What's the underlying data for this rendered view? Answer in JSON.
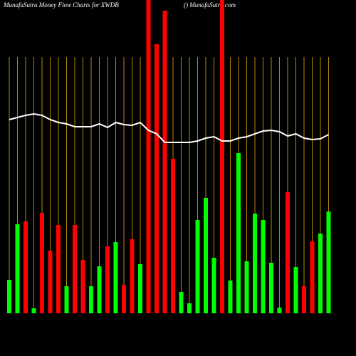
{
  "chart_data": {
    "type": "bar",
    "title": "MunafaSutra  Money Flow  Charts for XWDB",
    "subtitle": "() MunafaSutra.com",
    "values": [
      47,
      125,
      129,
      7,
      141,
      88,
      124,
      38,
      124,
      75,
      38,
      66,
      94,
      100,
      40,
      104,
      69,
      440,
      378,
      425,
      217,
      30,
      14,
      131,
      162,
      78,
      440,
      46,
      225,
      73,
      140,
      131,
      71,
      8,
      170,
      65,
      38,
      101,
      112,
      143
    ],
    "colors": [
      "#00ff00",
      "#00ff00",
      "#ff0000",
      "#00ff00",
      "#ff0000",
      "#ff0000",
      "#ff0000",
      "#00ff00",
      "#ff0000",
      "#ff0000",
      "#00ff00",
      "#00ff00",
      "#ff0000",
      "#00ff00",
      "#ff0000",
      "#ff0000",
      "#00ff00",
      "#ff0000",
      "#ff0000",
      "#ff0000",
      "#ff0000",
      "#00ff00",
      "#00ff00",
      "#00ff00",
      "#00ff00",
      "#00ff00",
      "#ff0000",
      "#00ff00",
      "#00ff00",
      "#00ff00",
      "#00ff00",
      "#00ff00",
      "#00ff00",
      "#00ff00",
      "#ff0000",
      "#00ff00",
      "#ff0000",
      "#ff0000",
      "#00ff00",
      "#00ff00"
    ],
    "line_values": [
      272,
      275,
      278,
      280,
      278,
      272,
      268,
      266,
      262,
      262,
      262,
      266,
      261,
      268,
      265,
      264,
      268,
      257,
      252,
      240,
      240,
      240,
      240,
      242,
      246,
      248,
      242,
      242,
      246,
      248,
      252,
      256,
      257,
      255,
      249,
      252,
      246,
      244,
      245,
      251
    ],
    "line_color": "#ffffff",
    "grid_color": "#b8860b",
    "ylim": [
      0,
      440
    ]
  }
}
